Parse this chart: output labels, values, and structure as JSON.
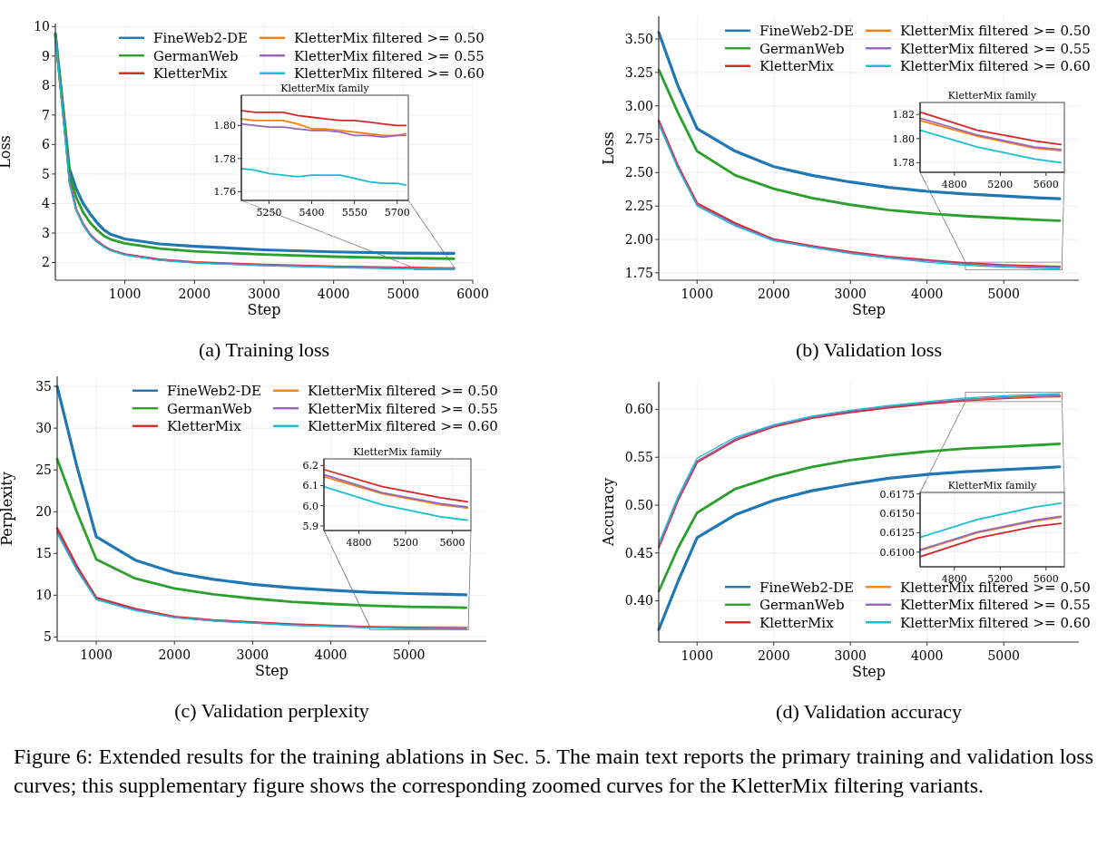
{
  "chart_data": [
    {
      "type": "line",
      "title": "(a) Training loss",
      "xlabel": "Step",
      "ylabel": "Loss",
      "xlim": [
        0,
        6000
      ],
      "ylim": [
        1.4,
        10.1
      ],
      "xticks": [
        1000,
        2000,
        3000,
        4000,
        5000,
        6000
      ],
      "yticks": [
        2,
        3,
        4,
        5,
        6,
        7,
        8,
        9,
        10
      ],
      "grid": true,
      "legend": "top right",
      "annotations": [
        "Figure 6: Extended results for the training ablations in Sec. 5. The main text reports the primary training and validation loss curves; this supplementary figure shows the corresponding zoomed curves for the KletterMix filtering variants."
      ],
      "x": [
        0,
        100,
        200,
        300,
        400,
        500,
        600,
        700,
        800,
        1000,
        1500,
        2000,
        3000,
        4000,
        5000,
        5730
      ],
      "series": [
        {
          "name": "FineWeb2-DE",
          "color": "#1f77b4",
          "values": [
            9.75,
            7.5,
            5.2,
            4.5,
            4.0,
            3.65,
            3.35,
            3.1,
            2.95,
            2.8,
            2.63,
            2.55,
            2.43,
            2.36,
            2.32,
            2.31
          ]
        },
        {
          "name": "GermanWeb",
          "color": "#2ca02c",
          "values": [
            9.75,
            7.4,
            5.0,
            4.2,
            3.7,
            3.35,
            3.1,
            2.9,
            2.78,
            2.65,
            2.47,
            2.38,
            2.27,
            2.2,
            2.15,
            2.13
          ]
        },
        {
          "name": "KletterMix",
          "color": "#d62728",
          "values": [
            null,
            null,
            4.8,
            3.8,
            3.3,
            2.95,
            2.72,
            2.55,
            2.42,
            2.28,
            2.1,
            2.01,
            1.92,
            1.86,
            1.82,
            1.8
          ]
        },
        {
          "name": "KletterMix filtered >= 0.50",
          "color": "#ff7f0e",
          "values": [
            null,
            null,
            null,
            null,
            null,
            null,
            null,
            null,
            null,
            null,
            null,
            null,
            null,
            null,
            null,
            null
          ]
        },
        {
          "name": "KletterMix filtered >= 0.55",
          "color": "#9467bd",
          "values": [
            9.7,
            7.3,
            4.8,
            3.8,
            3.3,
            2.95,
            2.71,
            2.54,
            2.41,
            2.27,
            2.09,
            2.0,
            1.91,
            1.85,
            1.81,
            1.794
          ]
        },
        {
          "name": "KletterMix filtered >= 0.60",
          "color": "#17becf",
          "values": [
            9.7,
            7.2,
            4.7,
            3.75,
            3.25,
            2.9,
            2.68,
            2.52,
            2.4,
            2.25,
            2.07,
            1.98,
            1.89,
            1.83,
            1.78,
            1.764
          ]
        }
      ]
    },
    {
      "type": "line",
      "title": "KletterMix family",
      "xlim": [
        5153,
        5739
      ],
      "ylim": [
        1.7547,
        1.8183
      ],
      "xticks": [
        5250,
        5400,
        5550,
        5700
      ],
      "yticks": [
        1.76,
        1.78,
        {
          "value": 1.8,
          "label": "1.80"
        }
      ],
      "grid": true,
      "x": [
        5153,
        5200,
        5250,
        5300,
        5350,
        5400,
        5450,
        5500,
        5550,
        5600,
        5650,
        5700,
        5730
      ],
      "series": [
        {
          "color": "#d62728",
          "values": [
            1.809,
            1.808,
            1.808,
            1.808,
            1.806,
            1.805,
            1.804,
            1.803,
            1.803,
            1.802,
            1.801,
            1.8,
            1.8
          ]
        },
        {
          "color": "#ff7f0e",
          "values": [
            1.804,
            1.803,
            1.803,
            1.803,
            1.801,
            1.798,
            1.798,
            1.797,
            1.796,
            1.795,
            1.794,
            1.794,
            1.795
          ]
        },
        {
          "color": "#9467bd",
          "values": [
            1.801,
            1.8,
            1.799,
            1.799,
            1.798,
            1.797,
            1.797,
            1.796,
            1.794,
            1.794,
            1.793,
            1.794,
            1.794
          ]
        },
        {
          "color": "#17becf",
          "values": [
            1.774,
            1.773,
            1.771,
            1.77,
            1.769,
            1.77,
            1.77,
            1.77,
            1.768,
            1.766,
            1.765,
            1.765,
            1.764
          ]
        }
      ]
    },
    {
      "type": "line",
      "title": "(b) Validation loss",
      "xlabel": "Step",
      "ylabel": "Loss",
      "xlim": [
        500,
        5980
      ],
      "ylim": [
        1.695,
        3.67
      ],
      "xticks": [
        1000,
        2000,
        3000,
        4000,
        5000
      ],
      "yticks": [
        {
          "value": 1.75,
          "label": "1.75"
        },
        {
          "value": 2,
          "label": "2.00"
        },
        {
          "value": 2.25,
          "label": "2.25"
        },
        {
          "value": 2.5,
          "label": "2.50"
        },
        {
          "value": 2.75,
          "label": "2.75"
        },
        {
          "value": 3,
          "label": "3.00"
        },
        {
          "value": 3.25,
          "label": "3.25"
        },
        {
          "value": 3.5,
          "label": "3.50"
        }
      ],
      "grid": true,
      "legend": "top right",
      "x": [
        500,
        750,
        1000,
        1500,
        2000,
        2500,
        3000,
        3500,
        4000,
        4500,
        5000,
        5500,
        5730
      ],
      "series": [
        {
          "name": "FineWeb2-DE",
          "color": "#1f77b4",
          "values": [
            3.55,
            3.15,
            2.83,
            2.66,
            2.545,
            2.48,
            2.43,
            2.39,
            2.36,
            2.34,
            2.325,
            2.31,
            2.305
          ]
        },
        {
          "name": "GermanWeb",
          "color": "#2ca02c",
          "values": [
            3.27,
            2.95,
            2.66,
            2.48,
            2.38,
            2.31,
            2.26,
            2.22,
            2.195,
            2.175,
            2.16,
            2.145,
            2.14
          ]
        },
        {
          "name": "KletterMix",
          "color": "#d62728",
          "values": [
            2.89,
            2.55,
            2.27,
            2.12,
            2.0,
            1.95,
            1.905,
            1.87,
            1.845,
            1.822,
            1.807,
            1.798,
            1.795
          ]
        },
        {
          "name": "KletterMix filtered >= 0.50",
          "color": "#ff7f0e",
          "values": [
            null,
            null,
            null,
            null,
            null,
            null,
            null,
            null,
            null,
            null,
            null,
            null,
            null
          ]
        },
        {
          "name": "KletterMix filtered >= 0.55",
          "color": "#9467bd",
          "values": [
            2.88,
            2.54,
            2.26,
            2.11,
            1.995,
            1.945,
            1.9,
            1.865,
            1.84,
            1.817,
            1.803,
            1.793,
            1.791
          ]
        },
        {
          "name": "KletterMix filtered >= 0.60",
          "color": "#17becf",
          "values": [
            2.86,
            2.53,
            2.25,
            2.1,
            1.99,
            1.94,
            1.895,
            1.86,
            1.83,
            1.807,
            1.793,
            1.783,
            1.78
          ]
        }
      ]
    },
    {
      "type": "line",
      "title": "KletterMix family",
      "xlim": [
        4500,
        5760
      ],
      "ylim": [
        1.772,
        1.83
      ],
      "xticks": [
        4800,
        5200,
        5600
      ],
      "yticks": [
        1.78,
        {
          "value": 1.8,
          "label": "1.80"
        },
        1.82
      ],
      "grid": true,
      "x": [
        4500,
        5000,
        5500,
        5730
      ],
      "series": [
        {
          "color": "#d62728",
          "values": [
            1.822,
            1.807,
            1.798,
            1.795
          ]
        },
        {
          "color": "#ff7f0e",
          "values": [
            1.815,
            1.802,
            1.792,
            1.79
          ]
        },
        {
          "color": "#9467bd",
          "values": [
            1.817,
            1.803,
            1.793,
            1.791
          ]
        },
        {
          "color": "#17becf",
          "values": [
            1.807,
            1.793,
            1.783,
            1.78
          ]
        }
      ]
    },
    {
      "type": "line",
      "title": "(c) Validation perplexity",
      "xlabel": "Step",
      "ylabel": "Perplexity",
      "xlim": [
        500,
        5990
      ],
      "ylim": [
        4.5,
        36.2
      ],
      "xticks": [
        1000,
        2000,
        3000,
        4000,
        5000
      ],
      "yticks": [
        5,
        10,
        15,
        20,
        25,
        30,
        35
      ],
      "grid": true,
      "legend": "top right",
      "x": [
        500,
        750,
        1000,
        1500,
        2000,
        2500,
        3000,
        3500,
        4000,
        4500,
        5000,
        5500,
        5730
      ],
      "series": [
        {
          "name": "FineWeb2-DE",
          "color": "#1f77b4",
          "values": [
            35,
            25.5,
            17,
            14.2,
            12.7,
            11.9,
            11.3,
            10.9,
            10.6,
            10.35,
            10.2,
            10.1,
            10.05
          ]
        },
        {
          "name": "GermanWeb",
          "color": "#2ca02c",
          "values": [
            26.3,
            20,
            14.3,
            12,
            10.8,
            10.1,
            9.6,
            9.2,
            8.95,
            8.75,
            8.62,
            8.55,
            8.5
          ]
        },
        {
          "name": "KletterMix",
          "color": "#d62728",
          "values": [
            18,
            13.5,
            9.7,
            8.35,
            7.4,
            7,
            6.75,
            6.5,
            6.35,
            6.18,
            6.095,
            6.04,
            6.02
          ]
        },
        {
          "name": "KletterMix filtered >= 0.50",
          "color": "#ff7f0e",
          "values": [
            null,
            null,
            null,
            null,
            null,
            null,
            null,
            null,
            null,
            null,
            null,
            null,
            null
          ]
        },
        {
          "name": "KletterMix filtered >= 0.55",
          "color": "#9467bd",
          "values": [
            17.6,
            13.2,
            9.55,
            8.25,
            7.35,
            6.95,
            6.7,
            6.45,
            6.3,
            6.155,
            6.065,
            6.01,
            5.994
          ]
        },
        {
          "name": "KletterMix filtered >= 0.60",
          "color": "#17becf",
          "values": [
            17.4,
            13,
            9.45,
            8.15,
            7.3,
            6.9,
            6.65,
            6.4,
            6.25,
            6.095,
            6.005,
            5.945,
            5.928
          ]
        }
      ]
    },
    {
      "type": "line",
      "title": "KletterMix family",
      "xlim": [
        4500,
        5760
      ],
      "ylim": [
        5.877,
        6.233
      ],
      "xticks": [
        4800,
        5200,
        5600
      ],
      "yticks": [
        5.9,
        {
          "value": 6,
          "label": "6.0"
        },
        6.1,
        6.2
      ],
      "grid": true,
      "x": [
        4500,
        5000,
        5500,
        5730
      ],
      "series": [
        {
          "color": "#d62728",
          "values": [
            6.18,
            6.095,
            6.04,
            6.02
          ]
        },
        {
          "color": "#ff7f0e",
          "values": [
            6.145,
            6.06,
            6.005,
            5.988
          ]
        },
        {
          "color": "#9467bd",
          "values": [
            6.155,
            6.065,
            6.01,
            5.994
          ]
        },
        {
          "color": "#17becf",
          "values": [
            6.095,
            6.005,
            5.945,
            5.928
          ]
        }
      ]
    },
    {
      "type": "line",
      "title": "(d) Validation accuracy",
      "xlabel": "Step",
      "ylabel": "Accuracy",
      "xlim": [
        500,
        5980
      ],
      "ylim": [
        0.357,
        0.6288
      ],
      "xticks": [
        1000,
        2000,
        3000,
        4000,
        5000
      ],
      "yticks": [
        {
          "value": 0.4,
          "label": "0.40"
        },
        0.45,
        {
          "value": 0.5,
          "label": "0.50"
        },
        0.55,
        {
          "value": 0.6,
          "label": "0.60"
        }
      ],
      "grid": true,
      "legend": "bottom right",
      "x": [
        500,
        750,
        1000,
        1500,
        2000,
        2500,
        3000,
        3500,
        4000,
        4500,
        5000,
        5500,
        5730
      ],
      "series": [
        {
          "name": "FineWeb2-DE",
          "color": "#1f77b4",
          "values": [
            0.37,
            0.42,
            0.466,
            0.49,
            0.505,
            0.515,
            0.522,
            0.528,
            0.532,
            0.535,
            0.537,
            0.539,
            0.54
          ]
        },
        {
          "name": "GermanWeb",
          "color": "#2ca02c",
          "values": [
            0.41,
            0.455,
            0.492,
            0.517,
            0.53,
            0.54,
            0.547,
            0.552,
            0.556,
            0.559,
            0.561,
            0.563,
            0.564
          ]
        },
        {
          "name": "KletterMix",
          "color": "#d62728",
          "values": [
            0.456,
            0.505,
            0.545,
            0.568,
            0.582,
            0.591,
            0.597,
            0.602,
            0.606,
            0.6094,
            0.6118,
            0.6133,
            0.6137
          ]
        },
        {
          "name": "KletterMix filtered >= 0.50",
          "color": "#ff7f0e",
          "values": [
            null,
            null,
            null,
            null,
            null,
            null,
            null,
            null,
            null,
            0.6102,
            0.6125,
            0.614,
            0.6145
          ]
        },
        {
          "name": "KletterMix filtered >= 0.55",
          "color": "#9467bd",
          "values": [
            0.457,
            0.506,
            0.546,
            0.569,
            0.583,
            0.592,
            0.598,
            0.603,
            0.607,
            0.6103,
            0.6126,
            0.6141,
            0.6146
          ]
        },
        {
          "name": "KletterMix filtered >= 0.60",
          "color": "#17becf",
          "values": [
            0.46,
            0.509,
            0.549,
            0.571,
            0.584,
            0.593,
            0.599,
            0.604,
            0.608,
            0.6119,
            0.6142,
            0.6158,
            0.6163
          ]
        }
      ]
    },
    {
      "type": "line",
      "title": "KletterMix family",
      "xlim": [
        4500,
        5760
      ],
      "ylim": [
        0.6081,
        0.6177
      ],
      "xticks": [
        4800,
        5200,
        5600
      ],
      "yticks": [
        {
          "value": 0.61,
          "label": "0.6100"
        },
        {
          "value": 0.6125,
          "label": "0.6125"
        },
        {
          "value": 0.615,
          "label": "0.6150"
        },
        {
          "value": 0.6175,
          "label": "0.6175"
        }
      ],
      "grid": true,
      "x": [
        4500,
        5000,
        5500,
        5730
      ],
      "series": [
        {
          "color": "#d62728",
          "values": [
            0.6094,
            0.6118,
            0.6133,
            0.6137
          ]
        },
        {
          "color": "#ff7f0e",
          "values": [
            0.6102,
            0.6125,
            0.614,
            0.6145
          ]
        },
        {
          "color": "#9467bd",
          "values": [
            0.6103,
            0.6126,
            0.6141,
            0.6146
          ]
        },
        {
          "color": "#17becf",
          "values": [
            0.6119,
            0.6142,
            0.6158,
            0.6163
          ]
        }
      ]
    }
  ]
}
